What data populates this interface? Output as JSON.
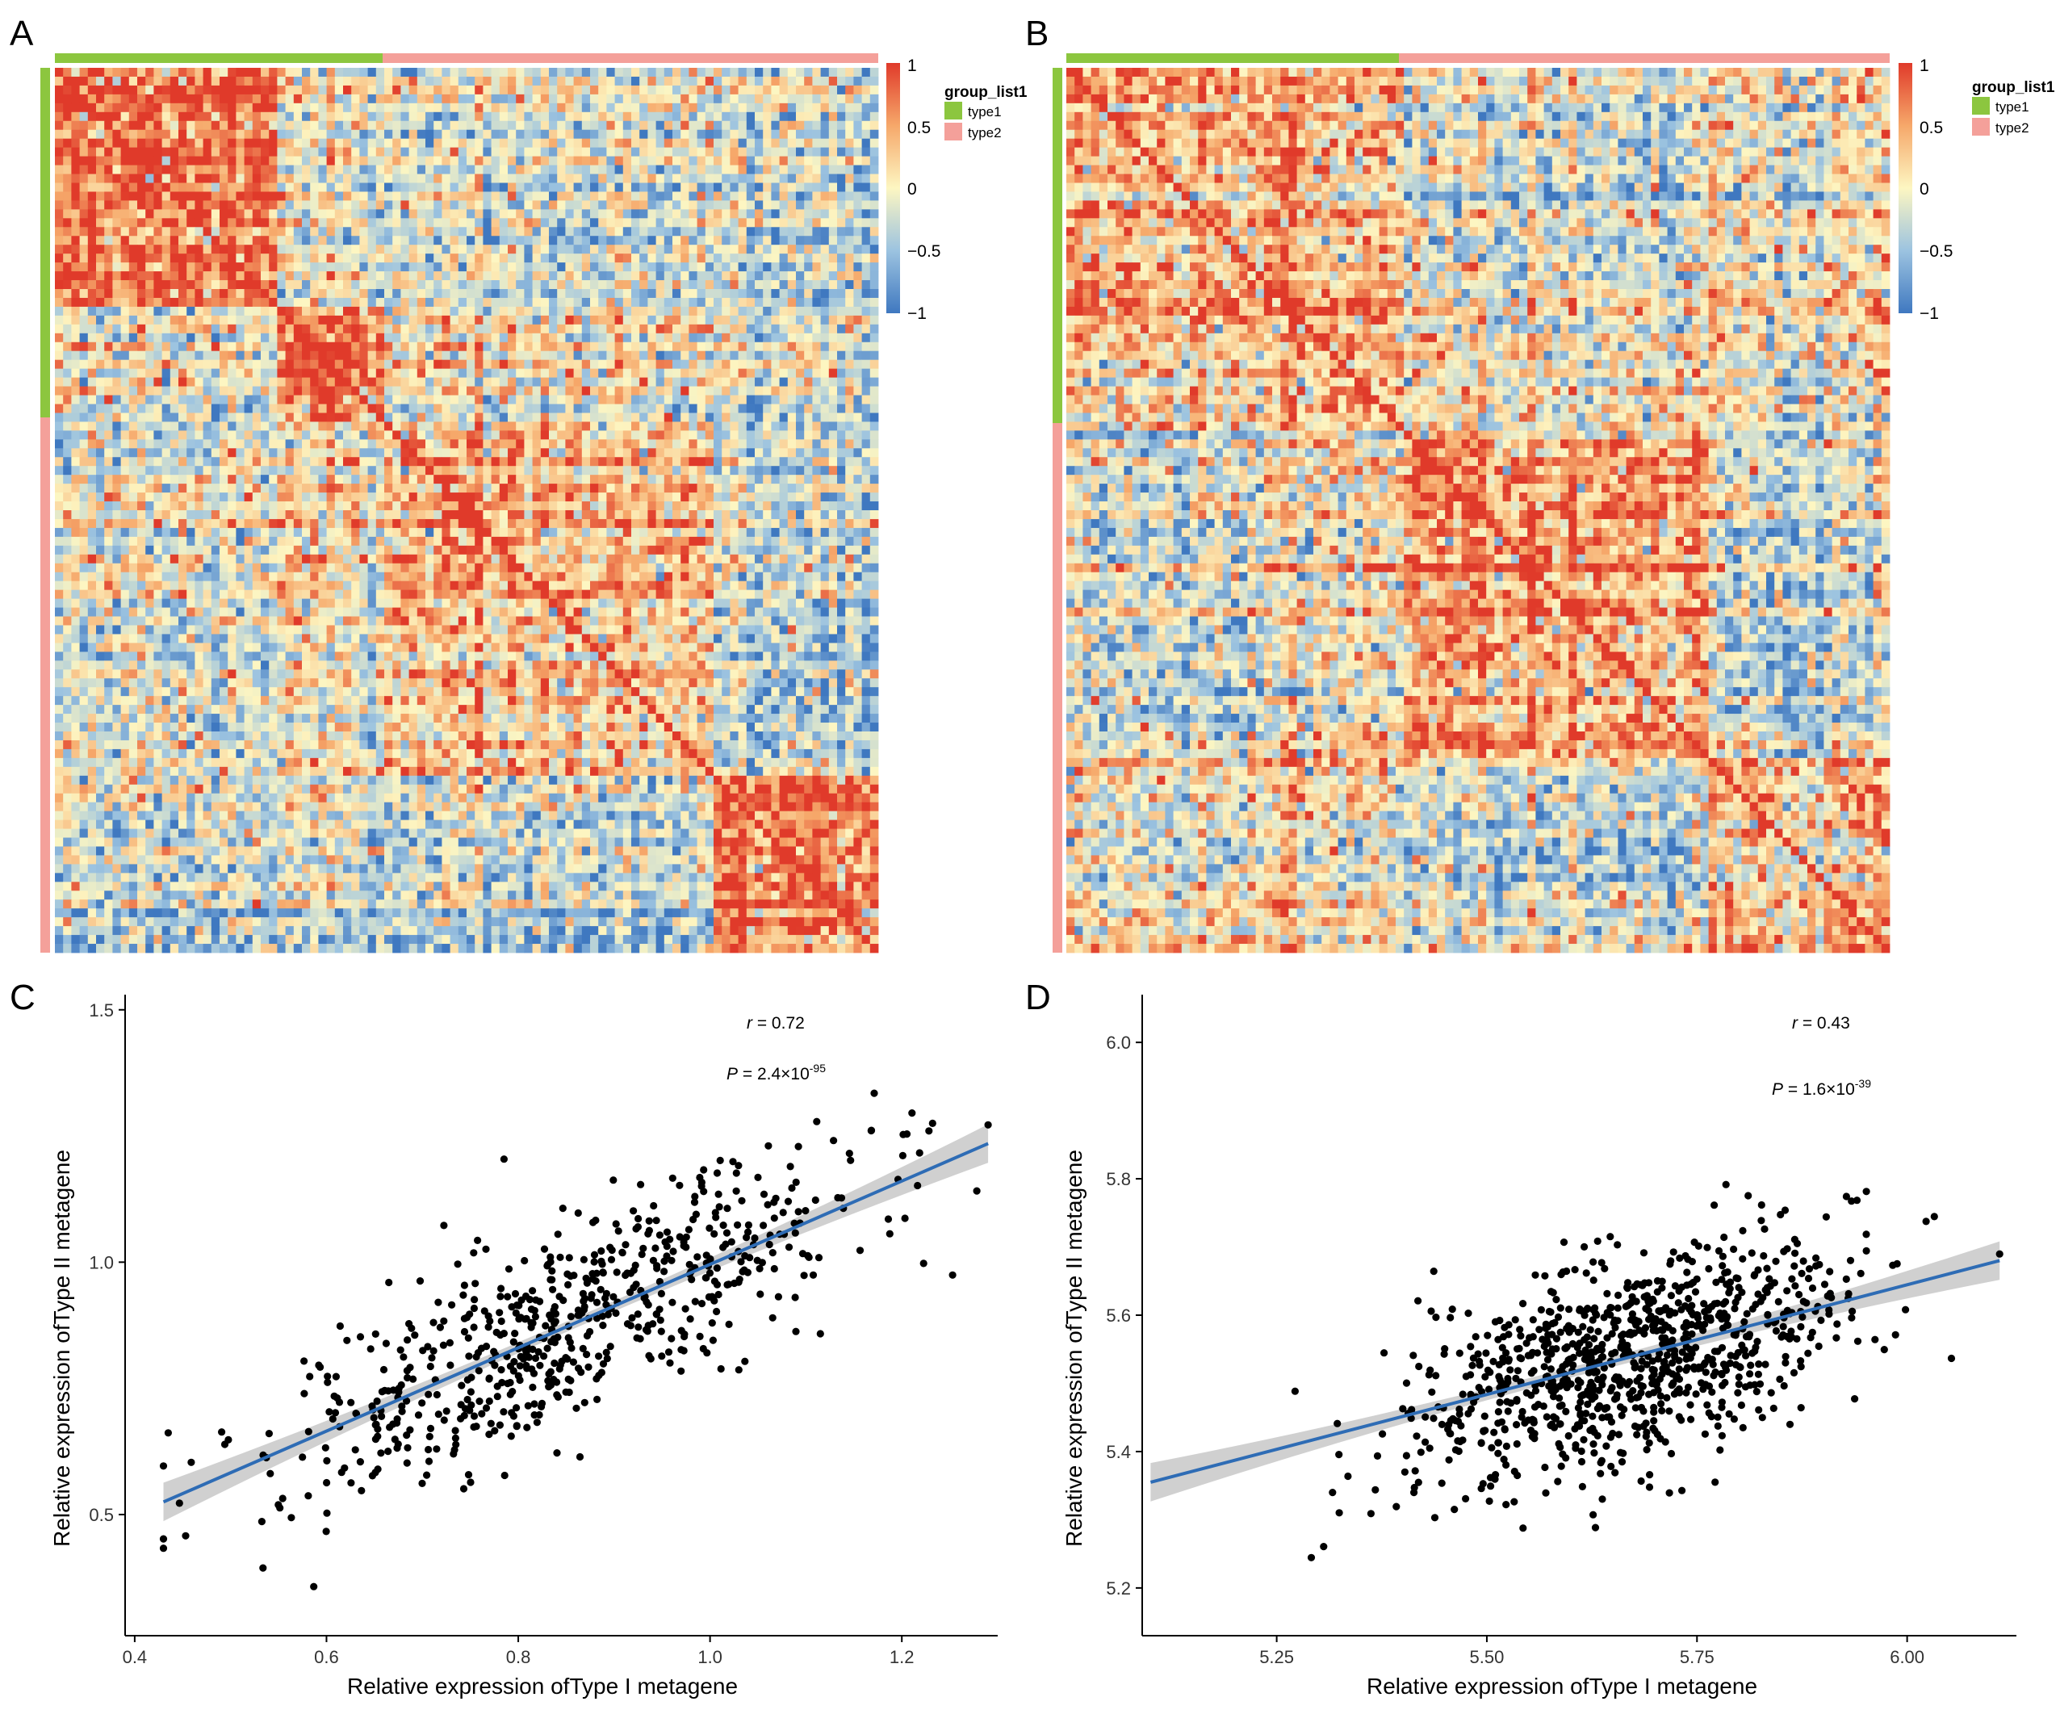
{
  "panels": {
    "A": "A",
    "B": "B",
    "C": "C",
    "D": "D"
  },
  "legend": {
    "title": "group_list1",
    "items": [
      "type1",
      "type2"
    ],
    "scale_ticks": [
      "1",
      "0.5",
      "0",
      "−0.5",
      "−1"
    ]
  },
  "colors": {
    "type1": "#8cc63f",
    "type2": "#f4a09a",
    "high": "#e03a2a",
    "mid": "#fdf6c2",
    "low": "#3f78c0",
    "fit_line": "#2e6cb5",
    "ci_band": "#c8c8c8",
    "point": "#000000"
  },
  "chart_data": [
    {
      "panel": "A",
      "type": "heatmap",
      "title": "",
      "value_range": [
        -1,
        1
      ],
      "legend_title": "group_list1",
      "groups": [
        {
          "name": "type1",
          "fraction": 0.4
        },
        {
          "name": "type2",
          "fraction": 0.6
        }
      ],
      "block_boundaries": [
        0,
        0.275,
        0.4,
        0.8,
        1.0
      ],
      "block_means": [
        [
          0.75,
          -0.1,
          -0.15,
          -0.25
        ],
        [
          -0.1,
          0.65,
          0.0,
          -0.2
        ],
        [
          -0.15,
          0.0,
          0.3,
          -0.3
        ],
        [
          -0.25,
          -0.2,
          -0.3,
          0.75
        ]
      ]
    },
    {
      "panel": "B",
      "type": "heatmap",
      "title": "",
      "value_range": [
        -1,
        1
      ],
      "legend_title": "group_list1",
      "groups": [
        {
          "name": "type1",
          "fraction": 0.4
        },
        {
          "name": "type2",
          "fraction": 0.6
        }
      ],
      "block_boundaries": [
        0,
        0.3,
        0.41,
        0.78,
        1.0
      ],
      "block_means": [
        [
          0.45,
          0.2,
          -0.15,
          0.05
        ],
        [
          0.2,
          0.35,
          0.05,
          0.0
        ],
        [
          -0.15,
          0.05,
          0.5,
          -0.25
        ],
        [
          0.05,
          0.0,
          -0.25,
          0.3
        ]
      ]
    },
    {
      "panel": "C",
      "type": "scatter",
      "xlabel": "Relative expression ofType I metagene",
      "ylabel": "Relative expression ofType II  metagene",
      "xlim": [
        0.39,
        1.3
      ],
      "ylim": [
        0.26,
        1.53
      ],
      "xticks": [
        0.4,
        0.6,
        0.8,
        1.0,
        1.2
      ],
      "xtick_labels": [
        "0.4",
        "0.6",
        "0.8",
        "1.0",
        "1.2"
      ],
      "yticks": [
        0.5,
        1.0,
        1.5
      ],
      "ytick_labels": [
        "0.5",
        "1.0",
        "1.5"
      ],
      "n_points": 650,
      "x_mean": 0.86,
      "x_sd": 0.17,
      "y_mean": 0.87,
      "y_sd": 0.19,
      "fit": {
        "x": [
          0.43,
          1.29
        ],
        "y": [
          0.525,
          1.235
        ]
      },
      "annotations": {
        "r_label": "r",
        "r_value": " = 0.72",
        "p_label": "P",
        "p_value": " = 2.4×10",
        "p_exp": "-95"
      }
    },
    {
      "panel": "D",
      "type": "scatter",
      "xlabel": "Relative expression ofType I metagene",
      "ylabel": "Relative expression ofType II metagene",
      "xlim": [
        5.09,
        6.13
      ],
      "ylim": [
        5.13,
        6.07
      ],
      "xticks": [
        5.25,
        5.5,
        5.75,
        6.0
      ],
      "xtick_labels": [
        "5.25",
        "5.50",
        "5.75",
        "6.00"
      ],
      "yticks": [
        5.2,
        5.4,
        5.6,
        5.8,
        6.0
      ],
      "ytick_labels": [
        "5.2",
        "5.4",
        "5.6",
        "5.8",
        "6.0"
      ],
      "n_points": 950,
      "x_mean": 5.67,
      "x_sd": 0.13,
      "y_mean": 5.54,
      "y_sd": 0.11,
      "fit": {
        "x": [
          5.1,
          6.11
        ],
        "y": [
          5.355,
          5.68
        ]
      },
      "annotations": {
        "r_label": "r",
        "r_value": " = 0.43",
        "p_label": "P",
        "p_value": " = 1.6×10",
        "p_exp": "-39"
      }
    }
  ]
}
